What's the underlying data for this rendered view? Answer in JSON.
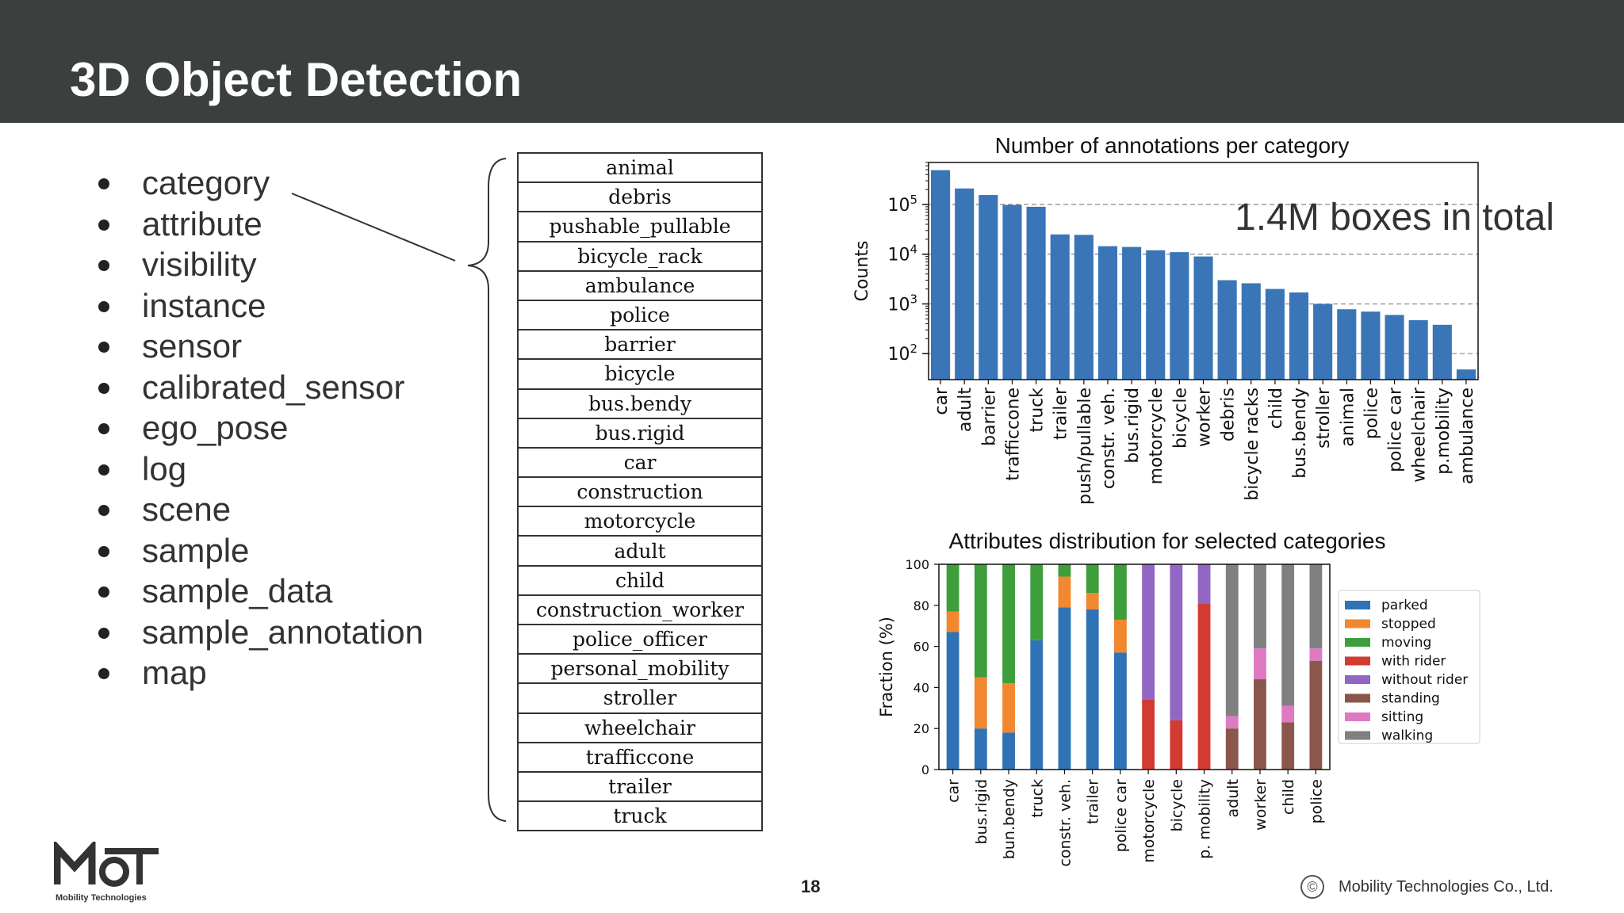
{
  "slide": {
    "title": "3D Object Detection",
    "page_number": "18",
    "copyright": "Mobility Technologies Co., Ltd.",
    "logo_text": "Mobility Technologies"
  },
  "bullets": [
    "category",
    "attribute",
    "visibility",
    "instance",
    "sensor",
    "calibrated_sensor",
    "ego_pose",
    "log",
    "scene",
    "sample",
    "sample_data",
    "sample_annotation",
    "map"
  ],
  "categories_table": [
    "animal",
    "debris",
    "pushable_pullable",
    "bicycle_rack",
    "ambulance",
    "police",
    "barrier",
    "bicycle",
    "bus.bendy",
    "bus.rigid",
    "car",
    "construction",
    "motorcycle",
    "adult",
    "child",
    "construction_worker",
    "police_officer",
    "personal_mobility",
    "stroller",
    "wheelchair",
    "trafficcone",
    "trailer",
    "truck"
  ],
  "overlay_text": "1.4M boxes in total",
  "chart_data": [
    {
      "type": "bar",
      "title": "Number of annotations per category",
      "ylabel": "Counts",
      "yscale": "log",
      "ylim": [
        30,
        700000
      ],
      "yticks": [
        100,
        1000,
        10000,
        100000
      ],
      "ytick_labels": [
        {
          "base": "10",
          "exp": "2"
        },
        {
          "base": "10",
          "exp": "3"
        },
        {
          "base": "10",
          "exp": "4"
        },
        {
          "base": "10",
          "exp": "5"
        }
      ],
      "grid": "horizontal dashed",
      "color": "#3a75b8",
      "categories": [
        "car",
        "adult",
        "barrier",
        "trafficcone",
        "truck",
        "trailer",
        "push/pullable",
        "constr. veh.",
        "bus.rigid",
        "motorcycle",
        "bicycle",
        "worker",
        "debris",
        "bicycle racks",
        "child",
        "bus.bendy",
        "stroller",
        "animal",
        "police",
        "police car",
        "wheelchair",
        "p.mobility",
        "ambulance"
      ],
      "values": [
        490000,
        210000,
        155000,
        98000,
        90000,
        25000,
        24500,
        14500,
        14000,
        12000,
        11000,
        9000,
        3000,
        2600,
        2000,
        1700,
        1000,
        780,
        700,
        600,
        470,
        380,
        48
      ]
    },
    {
      "type": "bar",
      "stacked": true,
      "title": "Attributes distribution for selected categories",
      "ylabel": "Fraction (%)",
      "ylim": [
        0,
        100
      ],
      "yticks": [
        "0",
        "20",
        "40",
        "60",
        "80",
        "100"
      ],
      "grid": "vertical dashed",
      "legend_position": "right",
      "categories": [
        "car",
        "bus.rigid",
        "bun.bendy",
        "truck",
        "constr. veh.",
        "trailer",
        "police car",
        "motorcycle",
        "bicycle",
        "p. mobility",
        "adult",
        "worker",
        "child",
        "police"
      ],
      "series": [
        {
          "name": "parked",
          "color": "#2f73b6",
          "values": [
            67,
            20,
            18,
            63,
            79,
            78,
            57,
            0,
            0,
            0,
            0,
            0,
            0,
            0
          ]
        },
        {
          "name": "stopped",
          "color": "#f1872f",
          "values": [
            10,
            25,
            24,
            0,
            15,
            8,
            16,
            0,
            0,
            0,
            0,
            0,
            0,
            0
          ]
        },
        {
          "name": "moving",
          "color": "#3d9e3b",
          "values": [
            23,
            55,
            58,
            37,
            6,
            14,
            27,
            0,
            0,
            0,
            0,
            0,
            0,
            0
          ]
        },
        {
          "name": "with rider",
          "color": "#d23b32",
          "values": [
            0,
            0,
            0,
            0,
            0,
            0,
            0,
            34,
            24,
            81,
            0,
            0,
            0,
            0
          ]
        },
        {
          "name": "without rider",
          "color": "#9266c3",
          "values": [
            0,
            0,
            0,
            0,
            0,
            0,
            0,
            66,
            76,
            19,
            0,
            0,
            0,
            0
          ]
        },
        {
          "name": "standing",
          "color": "#8b564b",
          "values": [
            0,
            0,
            0,
            0,
            0,
            0,
            0,
            0,
            0,
            0,
            20,
            44,
            23,
            53
          ]
        },
        {
          "name": "sitting",
          "color": "#df7ac2",
          "values": [
            0,
            0,
            0,
            0,
            0,
            0,
            0,
            0,
            0,
            0,
            6,
            15,
            8,
            6
          ]
        },
        {
          "name": "walking",
          "color": "#808080",
          "values": [
            0,
            0,
            0,
            0,
            0,
            0,
            0,
            0,
            0,
            0,
            74,
            41,
            69,
            41
          ]
        }
      ]
    }
  ]
}
